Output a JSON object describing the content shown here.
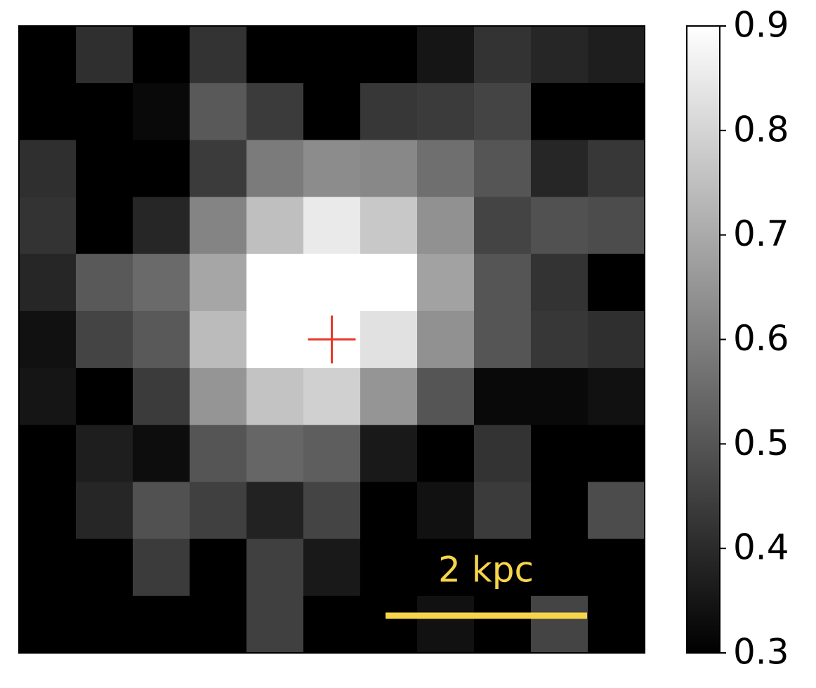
{
  "chart_data": {
    "type": "heatmap",
    "values": [
      [
        0.3,
        0.41,
        0.3,
        0.42,
        0.3,
        0.3,
        0.3,
        0.35,
        0.42,
        0.39,
        0.37
      ],
      [
        0.3,
        0.3,
        0.32,
        0.51,
        0.44,
        0.3,
        0.43,
        0.44,
        0.46,
        0.3,
        0.3
      ],
      [
        0.41,
        0.3,
        0.3,
        0.44,
        0.59,
        0.63,
        0.62,
        0.56,
        0.5,
        0.39,
        0.43
      ],
      [
        0.42,
        0.3,
        0.39,
        0.61,
        0.75,
        0.85,
        0.77,
        0.64,
        0.46,
        0.49,
        0.48
      ],
      [
        0.39,
        0.51,
        0.55,
        0.69,
        0.9,
        0.9,
        0.9,
        0.68,
        0.5,
        0.42,
        0.3
      ],
      [
        0.34,
        0.46,
        0.51,
        0.74,
        0.9,
        0.9,
        0.83,
        0.64,
        0.5,
        0.43,
        0.41
      ],
      [
        0.35,
        0.3,
        0.44,
        0.65,
        0.76,
        0.79,
        0.65,
        0.5,
        0.32,
        0.32,
        0.34
      ],
      [
        0.3,
        0.37,
        0.33,
        0.5,
        0.54,
        0.52,
        0.36,
        0.3,
        0.42,
        0.3,
        0.3
      ],
      [
        0.3,
        0.39,
        0.49,
        0.45,
        0.38,
        0.46,
        0.3,
        0.34,
        0.44,
        0.3,
        0.48
      ],
      [
        0.3,
        0.3,
        0.44,
        0.3,
        0.45,
        0.36,
        0.3,
        0.3,
        0.3,
        0.3,
        0.3
      ],
      [
        0.3,
        0.3,
        0.3,
        0.3,
        0.45,
        0.3,
        0.3,
        0.34,
        0.3,
        0.46,
        0.3
      ]
    ],
    "colormap": "gray",
    "clim": [
      0.3,
      0.9
    ],
    "cticks": [
      {
        "value": 0.3,
        "label": "0.3"
      },
      {
        "value": 0.4,
        "label": "0.4"
      },
      {
        "value": 0.5,
        "label": "0.5"
      },
      {
        "value": 0.6,
        "label": "0.6"
      },
      {
        "value": 0.7,
        "label": "0.7"
      },
      {
        "value": 0.8,
        "label": "0.8"
      },
      {
        "value": 0.9,
        "label": "0.9"
      }
    ],
    "marker": {
      "x": 5,
      "y": 5,
      "color": "#e8392a"
    },
    "scale_bar_label": "2 kpc",
    "scale_bar_color": "#f7d54a"
  }
}
